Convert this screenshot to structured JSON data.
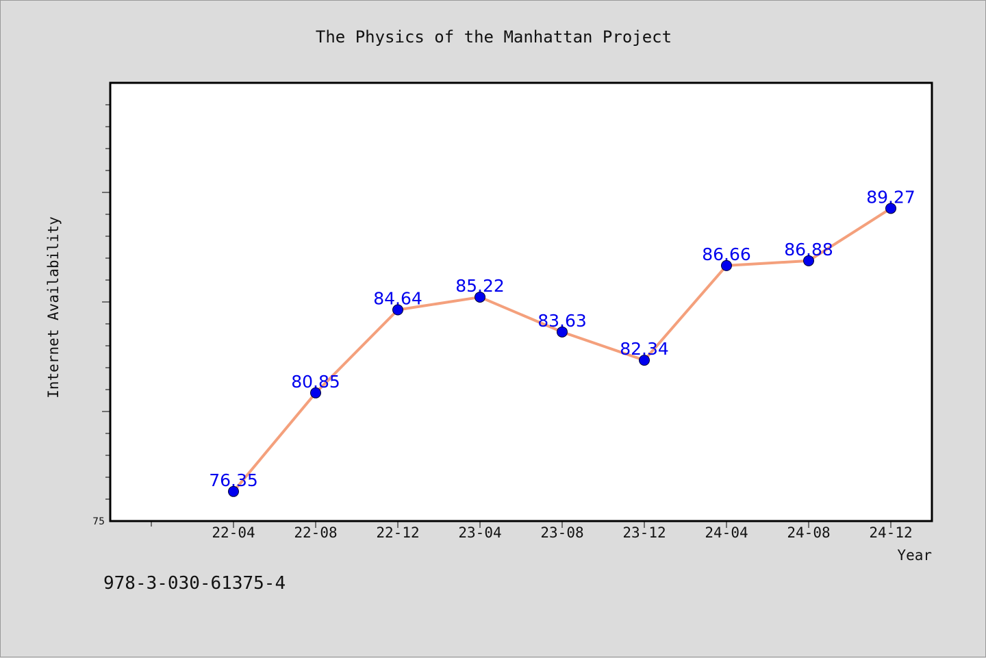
{
  "chart_data": {
    "type": "line",
    "title": "The Physics of the Manhattan Project",
    "xlabel": "Year",
    "ylabel": "Internet Availability",
    "categories": [
      "22-04",
      "22-08",
      "22-12",
      "23-04",
      "23-08",
      "23-12",
      "24-04",
      "24-08",
      "24-12"
    ],
    "series": [
      {
        "values": [
          76.35,
          80.85,
          84.64,
          85.22,
          83.63,
          82.34,
          86.66,
          86.88,
          89.27
        ],
        "labels": [
          "76.35",
          "80.85",
          "84.64",
          "85.22",
          "83.63",
          "82.34",
          "86.66",
          "86.88",
          "89.27"
        ],
        "line_color": "#f4a07c",
        "marker_color": "#0000ee"
      }
    ],
    "ylim": [
      75,
      95
    ],
    "y_tick_labels": [
      "75"
    ],
    "label_color": "#0000ee",
    "grid": false,
    "legend": "none"
  },
  "footer": {
    "isbn": "978-3-030-61375-4"
  }
}
